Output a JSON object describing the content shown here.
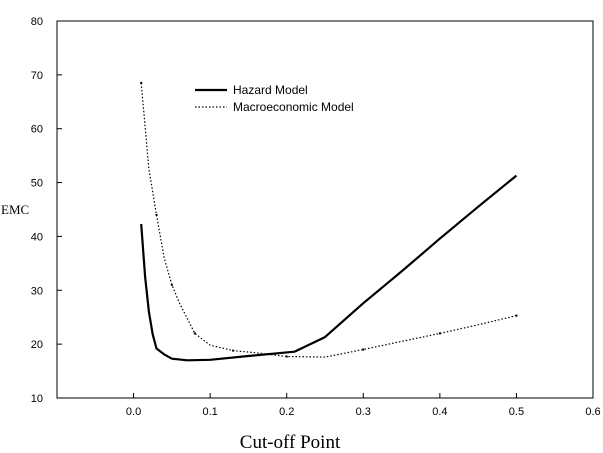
{
  "chart_data": {
    "type": "line",
    "title": "",
    "xlabel": "Cut-off Point",
    "ylabel": "EMC",
    "xlim": [
      -0.1,
      0.6
    ],
    "ylim": [
      10,
      80
    ],
    "xticks": [
      "0.0",
      "0.1",
      "0.2",
      "0.3",
      "0.4",
      "0.5",
      "0.6"
    ],
    "yticks": [
      "10",
      "20",
      "30",
      "40",
      "50",
      "60",
      "70",
      "80"
    ],
    "grid": false,
    "legend_position": "top-left",
    "series": [
      {
        "name": "Hazard Model",
        "style": "solid",
        "color": "#000000",
        "x": [
          0.01,
          0.015,
          0.02,
          0.025,
          0.03,
          0.04,
          0.05,
          0.07,
          0.1,
          0.15,
          0.21,
          0.25,
          0.3,
          0.35,
          0.4,
          0.45,
          0.5
        ],
        "y": [
          42.3,
          32.5,
          26.0,
          21.8,
          19.2,
          18.1,
          17.3,
          17.0,
          17.1,
          17.8,
          18.6,
          21.3,
          27.6,
          33.5,
          39.6,
          45.5,
          51.3
        ]
      },
      {
        "name": "Macroeconomic Model",
        "style": "dotted",
        "color": "#000000",
        "x": [
          0.01,
          0.02,
          0.03,
          0.04,
          0.05,
          0.06,
          0.08,
          0.1,
          0.13,
          0.16,
          0.2,
          0.25,
          0.3,
          0.35,
          0.4,
          0.45,
          0.5
        ],
        "y": [
          68.5,
          52.5,
          44.0,
          36.0,
          31.0,
          27.6,
          22.0,
          19.8,
          18.8,
          18.4,
          17.7,
          17.6,
          19.0,
          20.5,
          22.0,
          23.6,
          25.3
        ]
      }
    ]
  }
}
